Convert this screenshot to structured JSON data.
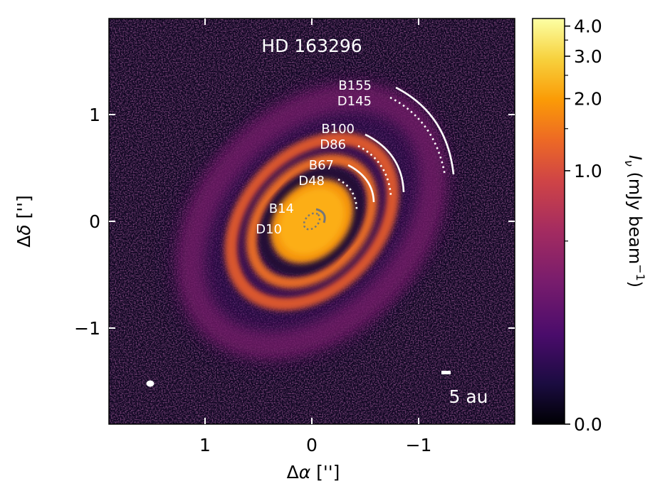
{
  "chart_data": {
    "type": "heatmap",
    "title": "HD 163296",
    "xlabel": "Δα ['']",
    "ylabel": "Δδ ['']",
    "xlim": [
      1.9,
      -1.9
    ],
    "ylim": [
      -1.9,
      1.9
    ],
    "x_ticks": [
      1,
      0,
      -1
    ],
    "x_tick_labels": [
      "1",
      "0",
      "−1"
    ],
    "y_ticks": [
      1,
      0,
      -1
    ],
    "y_tick_labels": [
      "1",
      "0",
      "−1"
    ],
    "colorbar": {
      "label_main": "I",
      "label_sub": "ν",
      "label_units": " (mJy beam",
      "label_exp": "−1",
      "label_close": ")",
      "scale": "asinh",
      "range": [
        0.0,
        4.3
      ],
      "ticks": [
        0.0,
        1.0,
        2.0,
        3.0,
        4.0
      ],
      "tick_labels": [
        "0.0",
        "1.0",
        "2.0",
        "3.0",
        "4.0"
      ],
      "colormap": "inferno"
    },
    "features": [
      {
        "label": "B155",
        "type": "ring",
        "radius_arcsec": 1.29,
        "style": "solid"
      },
      {
        "label": "D145",
        "type": "gap",
        "radius_arcsec": 1.2,
        "style": "dotted"
      },
      {
        "label": "B100",
        "type": "ring",
        "radius_arcsec": 0.84,
        "style": "solid"
      },
      {
        "label": "D86",
        "type": "gap",
        "radius_arcsec": 0.75,
        "style": "dotted"
      },
      {
        "label": "B67",
        "type": "ring",
        "radius_arcsec": 0.59,
        "style": "solid"
      },
      {
        "label": "D48",
        "type": "gap",
        "radius_arcsec": 0.45,
        "style": "dotted"
      },
      {
        "label": "B14",
        "type": "ring",
        "radius_arcsec": 0.13,
        "style": "solid"
      },
      {
        "label": "D10",
        "type": "gap",
        "radius_arcsec": 0.09,
        "style": "dotted"
      }
    ],
    "scale_bar_label": "5 au",
    "beam": "filled white ellipse, bottom-left",
    "grid": false
  }
}
